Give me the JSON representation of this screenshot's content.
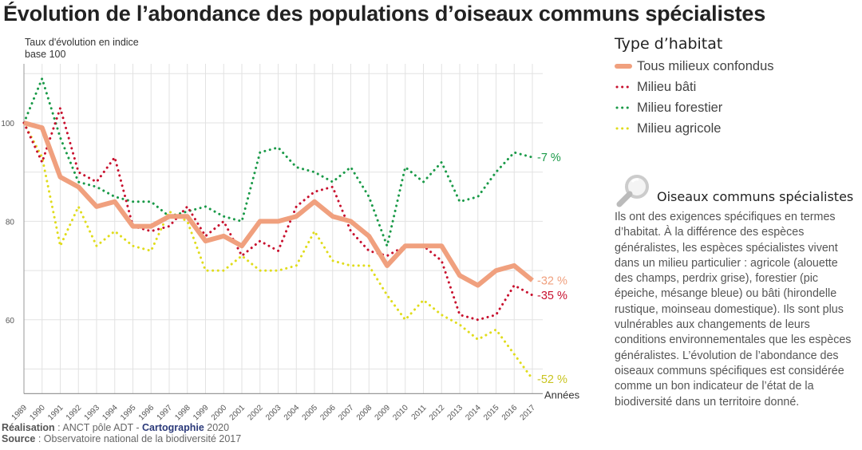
{
  "title": "Évolution de l’abondance des populations d’oiseaux communs spécialistes",
  "legend": {
    "title": "Type d’habitat",
    "items": [
      "Tous milieux confondus",
      "Milieu bâti",
      "Milieu forestier",
      "Milieu agricole"
    ]
  },
  "info": {
    "icon": "magnifier-icon",
    "title": "Oiseaux communs spécialistes",
    "text": "Ils ont des exigences spécifiques en termes d’habitat. À la différence des espèces généralistes, les espèces spécialistes vivent dans un milieu particulier : agricole (alouette des champs, perdrix grise), forestier (pic épeiche, mésange bleue) ou bâti (hirondelle rustique, moinseau domestique). Ils sont plus vulnérables aux changements de leurs conditions environnementales que les espèces généralistes. L’évolution de l’abondance des oiseaux communs spécifiques est considérée comme un bon indicateur de l’état de la biodiversité dans un territoire donné."
  },
  "credits": {
    "realisation_label": "Réalisation",
    "realisation_text": " : ANCT pôle ADT - ",
    "carto_label": "Cartographie",
    "carto_year": " 2020",
    "source_label": "Source",
    "source_text": " : Observatoire national de la biodiversité 2017"
  },
  "chart_data": {
    "type": "line",
    "ylabel": "Taux d'évolution en indice base 100",
    "xlabel": "Années",
    "ylim": [
      45,
      112
    ],
    "yticks": [
      60,
      80,
      100
    ],
    "ygrid": [
      50,
      60,
      70,
      80,
      90,
      100,
      110
    ],
    "grid": true,
    "legend_placement": "right",
    "x": [
      1989,
      1990,
      1991,
      1992,
      1993,
      1994,
      1995,
      1996,
      1997,
      1998,
      1999,
      2000,
      2001,
      2002,
      2003,
      2004,
      2005,
      2006,
      2007,
      2008,
      2009,
      2010,
      2011,
      2012,
      2013,
      2014,
      2015,
      2016,
      2017
    ],
    "series": [
      {
        "name": "Milieu agricole",
        "color": "#e0dc1c",
        "style": "dotted",
        "end_label": "-52 %",
        "end_label_color": "#c9c420",
        "values": [
          100,
          93,
          75,
          83,
          75,
          78,
          75,
          74,
          82,
          80,
          70,
          70,
          73,
          70,
          70,
          71,
          78,
          72,
          71,
          71,
          65,
          60,
          64,
          61,
          59,
          56,
          58,
          53,
          48
        ]
      },
      {
        "name": "Milieu forestier",
        "color": "#1a9a48",
        "style": "dotted",
        "end_label": "-7 %",
        "end_label_color": "#1a9a48",
        "values": [
          100,
          109,
          97,
          88,
          87,
          85,
          84,
          84,
          81,
          82,
          83,
          81,
          80,
          94,
          95,
          91,
          90,
          88,
          91,
          85,
          75,
          91,
          88,
          92,
          84,
          85,
          90,
          94,
          93
        ]
      },
      {
        "name": "Milieu bâti",
        "color": "#c8102e",
        "style": "dotted",
        "end_label": "-35 %",
        "end_label_color": "#c8102e",
        "values": [
          100,
          92,
          103,
          90,
          88,
          93,
          79,
          78,
          79,
          83,
          77,
          80,
          73,
          76,
          74,
          83,
          86,
          87,
          78,
          74,
          73,
          75,
          75,
          72,
          61,
          60,
          61,
          67,
          65
        ]
      },
      {
        "name": "Tous milieux confondus",
        "color": "#f0a07e",
        "style": "solid",
        "end_label": "-32 %",
        "end_label_color": "#f0a07e",
        "values": [
          100,
          99,
          89,
          87,
          83,
          84,
          79,
          79,
          81,
          81,
          76,
          77,
          75,
          80,
          80,
          81,
          84,
          81,
          80,
          77,
          71,
          75,
          75,
          75,
          69,
          67,
          70,
          71,
          68
        ]
      }
    ]
  }
}
